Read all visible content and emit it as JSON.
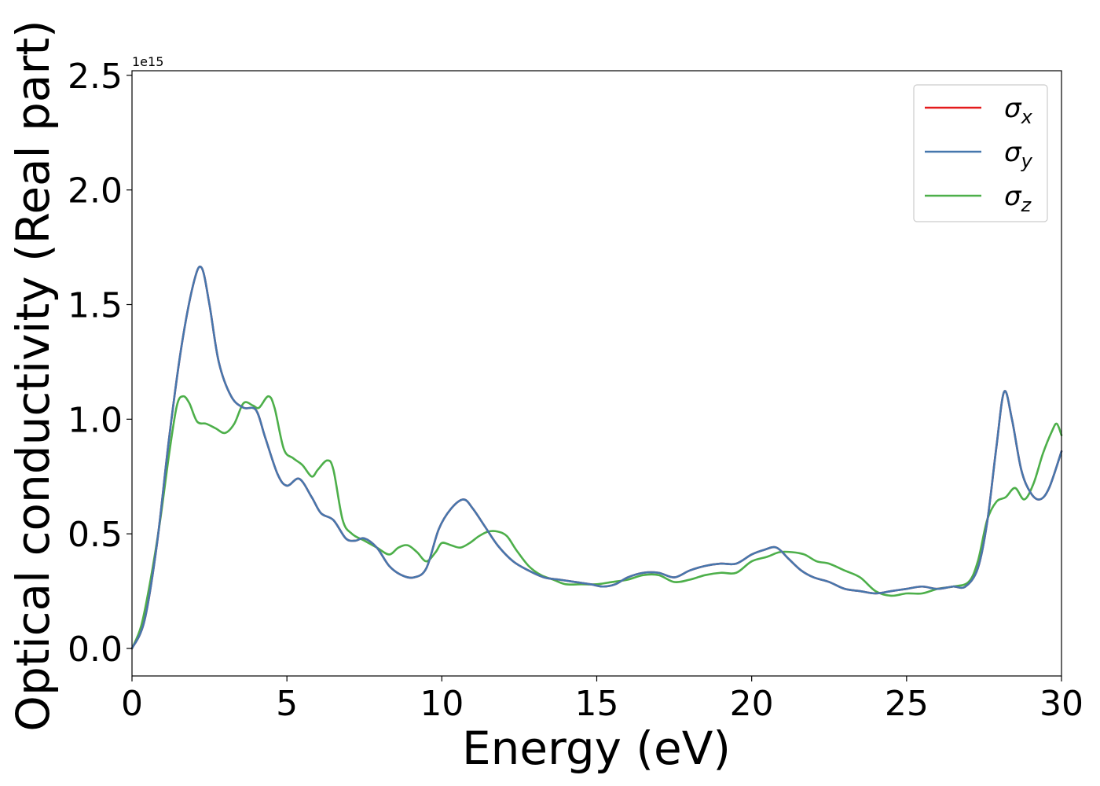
{
  "chart_data": {
    "type": "line",
    "title": "",
    "xlabel": "Energy (eV)",
    "ylabel": "Optical conductivity (Real part)",
    "y_offset_label": "1e15",
    "xlim": [
      0,
      30
    ],
    "ylim": [
      -0.12,
      2.52
    ],
    "xticks": [
      0,
      5,
      10,
      15,
      20,
      25,
      30
    ],
    "yticks": [
      0.0,
      0.5,
      1.0,
      1.5,
      2.0,
      2.5
    ],
    "xtick_labels": [
      "0",
      "5",
      "10",
      "15",
      "20",
      "25",
      "30"
    ],
    "ytick_labels": [
      "0.0",
      "0.5",
      "1.0",
      "1.5",
      "2.0",
      "2.5"
    ],
    "grid": false,
    "legend_position": "upper right",
    "series": [
      {
        "name": "σx",
        "symbol": "σ",
        "subscript": "x",
        "color": "#e41a1c",
        "x": [
          0,
          0.4,
          0.8,
          1.2,
          1.6,
          2.0,
          2.25,
          2.5,
          2.8,
          3.2,
          3.6,
          4.0,
          4.3,
          4.7,
          5.0,
          5.4,
          5.8,
          6.1,
          6.5,
          6.9,
          7.2,
          7.5,
          7.9,
          8.3,
          8.7,
          9.1,
          9.5,
          9.9,
          10.3,
          10.7,
          11.0,
          11.4,
          11.8,
          12.3,
          12.8,
          13.3,
          13.8,
          14.3,
          14.8,
          15.2,
          15.6,
          16.0,
          16.5,
          17.0,
          17.5,
          18.0,
          18.5,
          19.0,
          19.5,
          20.0,
          20.4,
          20.8,
          21.2,
          21.6,
          22.0,
          22.5,
          23.0,
          23.5,
          24.0,
          24.5,
          25.0,
          25.5,
          26.0,
          26.5,
          26.9,
          27.3,
          27.6,
          27.9,
          28.15,
          28.4,
          28.7,
          29.0,
          29.3,
          29.6,
          30.0
        ],
        "y": [
          0.0,
          0.12,
          0.45,
          0.92,
          1.32,
          1.6,
          1.66,
          1.5,
          1.25,
          1.1,
          1.05,
          1.04,
          0.92,
          0.76,
          0.71,
          0.74,
          0.66,
          0.59,
          0.56,
          0.48,
          0.47,
          0.48,
          0.44,
          0.36,
          0.32,
          0.31,
          0.35,
          0.52,
          0.61,
          0.65,
          0.61,
          0.53,
          0.45,
          0.38,
          0.34,
          0.31,
          0.3,
          0.29,
          0.28,
          0.27,
          0.28,
          0.31,
          0.33,
          0.33,
          0.31,
          0.34,
          0.36,
          0.37,
          0.37,
          0.41,
          0.43,
          0.44,
          0.39,
          0.34,
          0.31,
          0.29,
          0.26,
          0.25,
          0.24,
          0.25,
          0.26,
          0.27,
          0.26,
          0.27,
          0.27,
          0.35,
          0.55,
          0.88,
          1.12,
          1.0,
          0.78,
          0.68,
          0.65,
          0.7,
          0.86
        ]
      },
      {
        "name": "σy",
        "symbol": "σ",
        "subscript": "y",
        "color": "#4677ad",
        "x": [
          0,
          0.4,
          0.8,
          1.2,
          1.6,
          2.0,
          2.25,
          2.5,
          2.8,
          3.2,
          3.6,
          4.0,
          4.3,
          4.7,
          5.0,
          5.4,
          5.8,
          6.1,
          6.5,
          6.9,
          7.2,
          7.5,
          7.9,
          8.3,
          8.7,
          9.1,
          9.5,
          9.9,
          10.3,
          10.7,
          11.0,
          11.4,
          11.8,
          12.3,
          12.8,
          13.3,
          13.8,
          14.3,
          14.8,
          15.2,
          15.6,
          16.0,
          16.5,
          17.0,
          17.5,
          18.0,
          18.5,
          19.0,
          19.5,
          20.0,
          20.4,
          20.8,
          21.2,
          21.6,
          22.0,
          22.5,
          23.0,
          23.5,
          24.0,
          24.5,
          25.0,
          25.5,
          26.0,
          26.5,
          26.9,
          27.3,
          27.6,
          27.9,
          28.15,
          28.4,
          28.7,
          29.0,
          29.3,
          29.6,
          30.0
        ],
        "y": [
          0.0,
          0.12,
          0.45,
          0.92,
          1.32,
          1.6,
          1.66,
          1.5,
          1.25,
          1.1,
          1.05,
          1.04,
          0.92,
          0.76,
          0.71,
          0.74,
          0.66,
          0.59,
          0.56,
          0.48,
          0.47,
          0.48,
          0.44,
          0.36,
          0.32,
          0.31,
          0.35,
          0.52,
          0.61,
          0.65,
          0.61,
          0.53,
          0.45,
          0.38,
          0.34,
          0.31,
          0.3,
          0.29,
          0.28,
          0.27,
          0.28,
          0.31,
          0.33,
          0.33,
          0.31,
          0.34,
          0.36,
          0.37,
          0.37,
          0.41,
          0.43,
          0.44,
          0.39,
          0.34,
          0.31,
          0.29,
          0.26,
          0.25,
          0.24,
          0.25,
          0.26,
          0.27,
          0.26,
          0.27,
          0.27,
          0.35,
          0.55,
          0.88,
          1.12,
          1.0,
          0.78,
          0.68,
          0.65,
          0.7,
          0.86
        ]
      },
      {
        "name": "σz",
        "symbol": "σ",
        "subscript": "z",
        "color": "#4daf4a",
        "x": [
          0,
          0.3,
          0.6,
          0.9,
          1.2,
          1.45,
          1.65,
          1.85,
          2.1,
          2.4,
          2.7,
          3.0,
          3.3,
          3.6,
          3.9,
          4.1,
          4.4,
          4.6,
          4.9,
          5.2,
          5.5,
          5.8,
          6.0,
          6.3,
          6.5,
          6.8,
          7.1,
          7.5,
          7.9,
          8.3,
          8.6,
          8.9,
          9.2,
          9.5,
          9.8,
          10.0,
          10.3,
          10.6,
          10.9,
          11.2,
          11.5,
          11.8,
          12.1,
          12.4,
          12.8,
          13.2,
          13.6,
          14.0,
          14.5,
          15.0,
          15.5,
          16.0,
          16.5,
          17.0,
          17.5,
          18.0,
          18.5,
          19.0,
          19.5,
          20.0,
          20.5,
          20.9,
          21.3,
          21.7,
          22.1,
          22.5,
          23.0,
          23.5,
          24.0,
          24.5,
          25.0,
          25.5,
          26.0,
          26.5,
          27.0,
          27.3,
          27.6,
          27.9,
          28.2,
          28.5,
          28.8,
          29.1,
          29.4,
          29.7,
          29.85,
          30.0
        ],
        "y": [
          0.0,
          0.1,
          0.3,
          0.55,
          0.85,
          1.06,
          1.1,
          1.07,
          0.99,
          0.98,
          0.96,
          0.94,
          0.98,
          1.07,
          1.06,
          1.05,
          1.1,
          1.05,
          0.87,
          0.83,
          0.8,
          0.75,
          0.78,
          0.82,
          0.78,
          0.56,
          0.5,
          0.47,
          0.44,
          0.41,
          0.44,
          0.45,
          0.42,
          0.38,
          0.42,
          0.46,
          0.45,
          0.44,
          0.46,
          0.49,
          0.51,
          0.51,
          0.49,
          0.43,
          0.36,
          0.32,
          0.3,
          0.28,
          0.28,
          0.28,
          0.29,
          0.3,
          0.32,
          0.32,
          0.29,
          0.3,
          0.32,
          0.33,
          0.33,
          0.38,
          0.4,
          0.42,
          0.42,
          0.41,
          0.38,
          0.37,
          0.34,
          0.31,
          0.25,
          0.23,
          0.24,
          0.24,
          0.26,
          0.27,
          0.29,
          0.38,
          0.56,
          0.64,
          0.66,
          0.7,
          0.65,
          0.72,
          0.85,
          0.95,
          0.98,
          0.93
        ]
      }
    ]
  }
}
